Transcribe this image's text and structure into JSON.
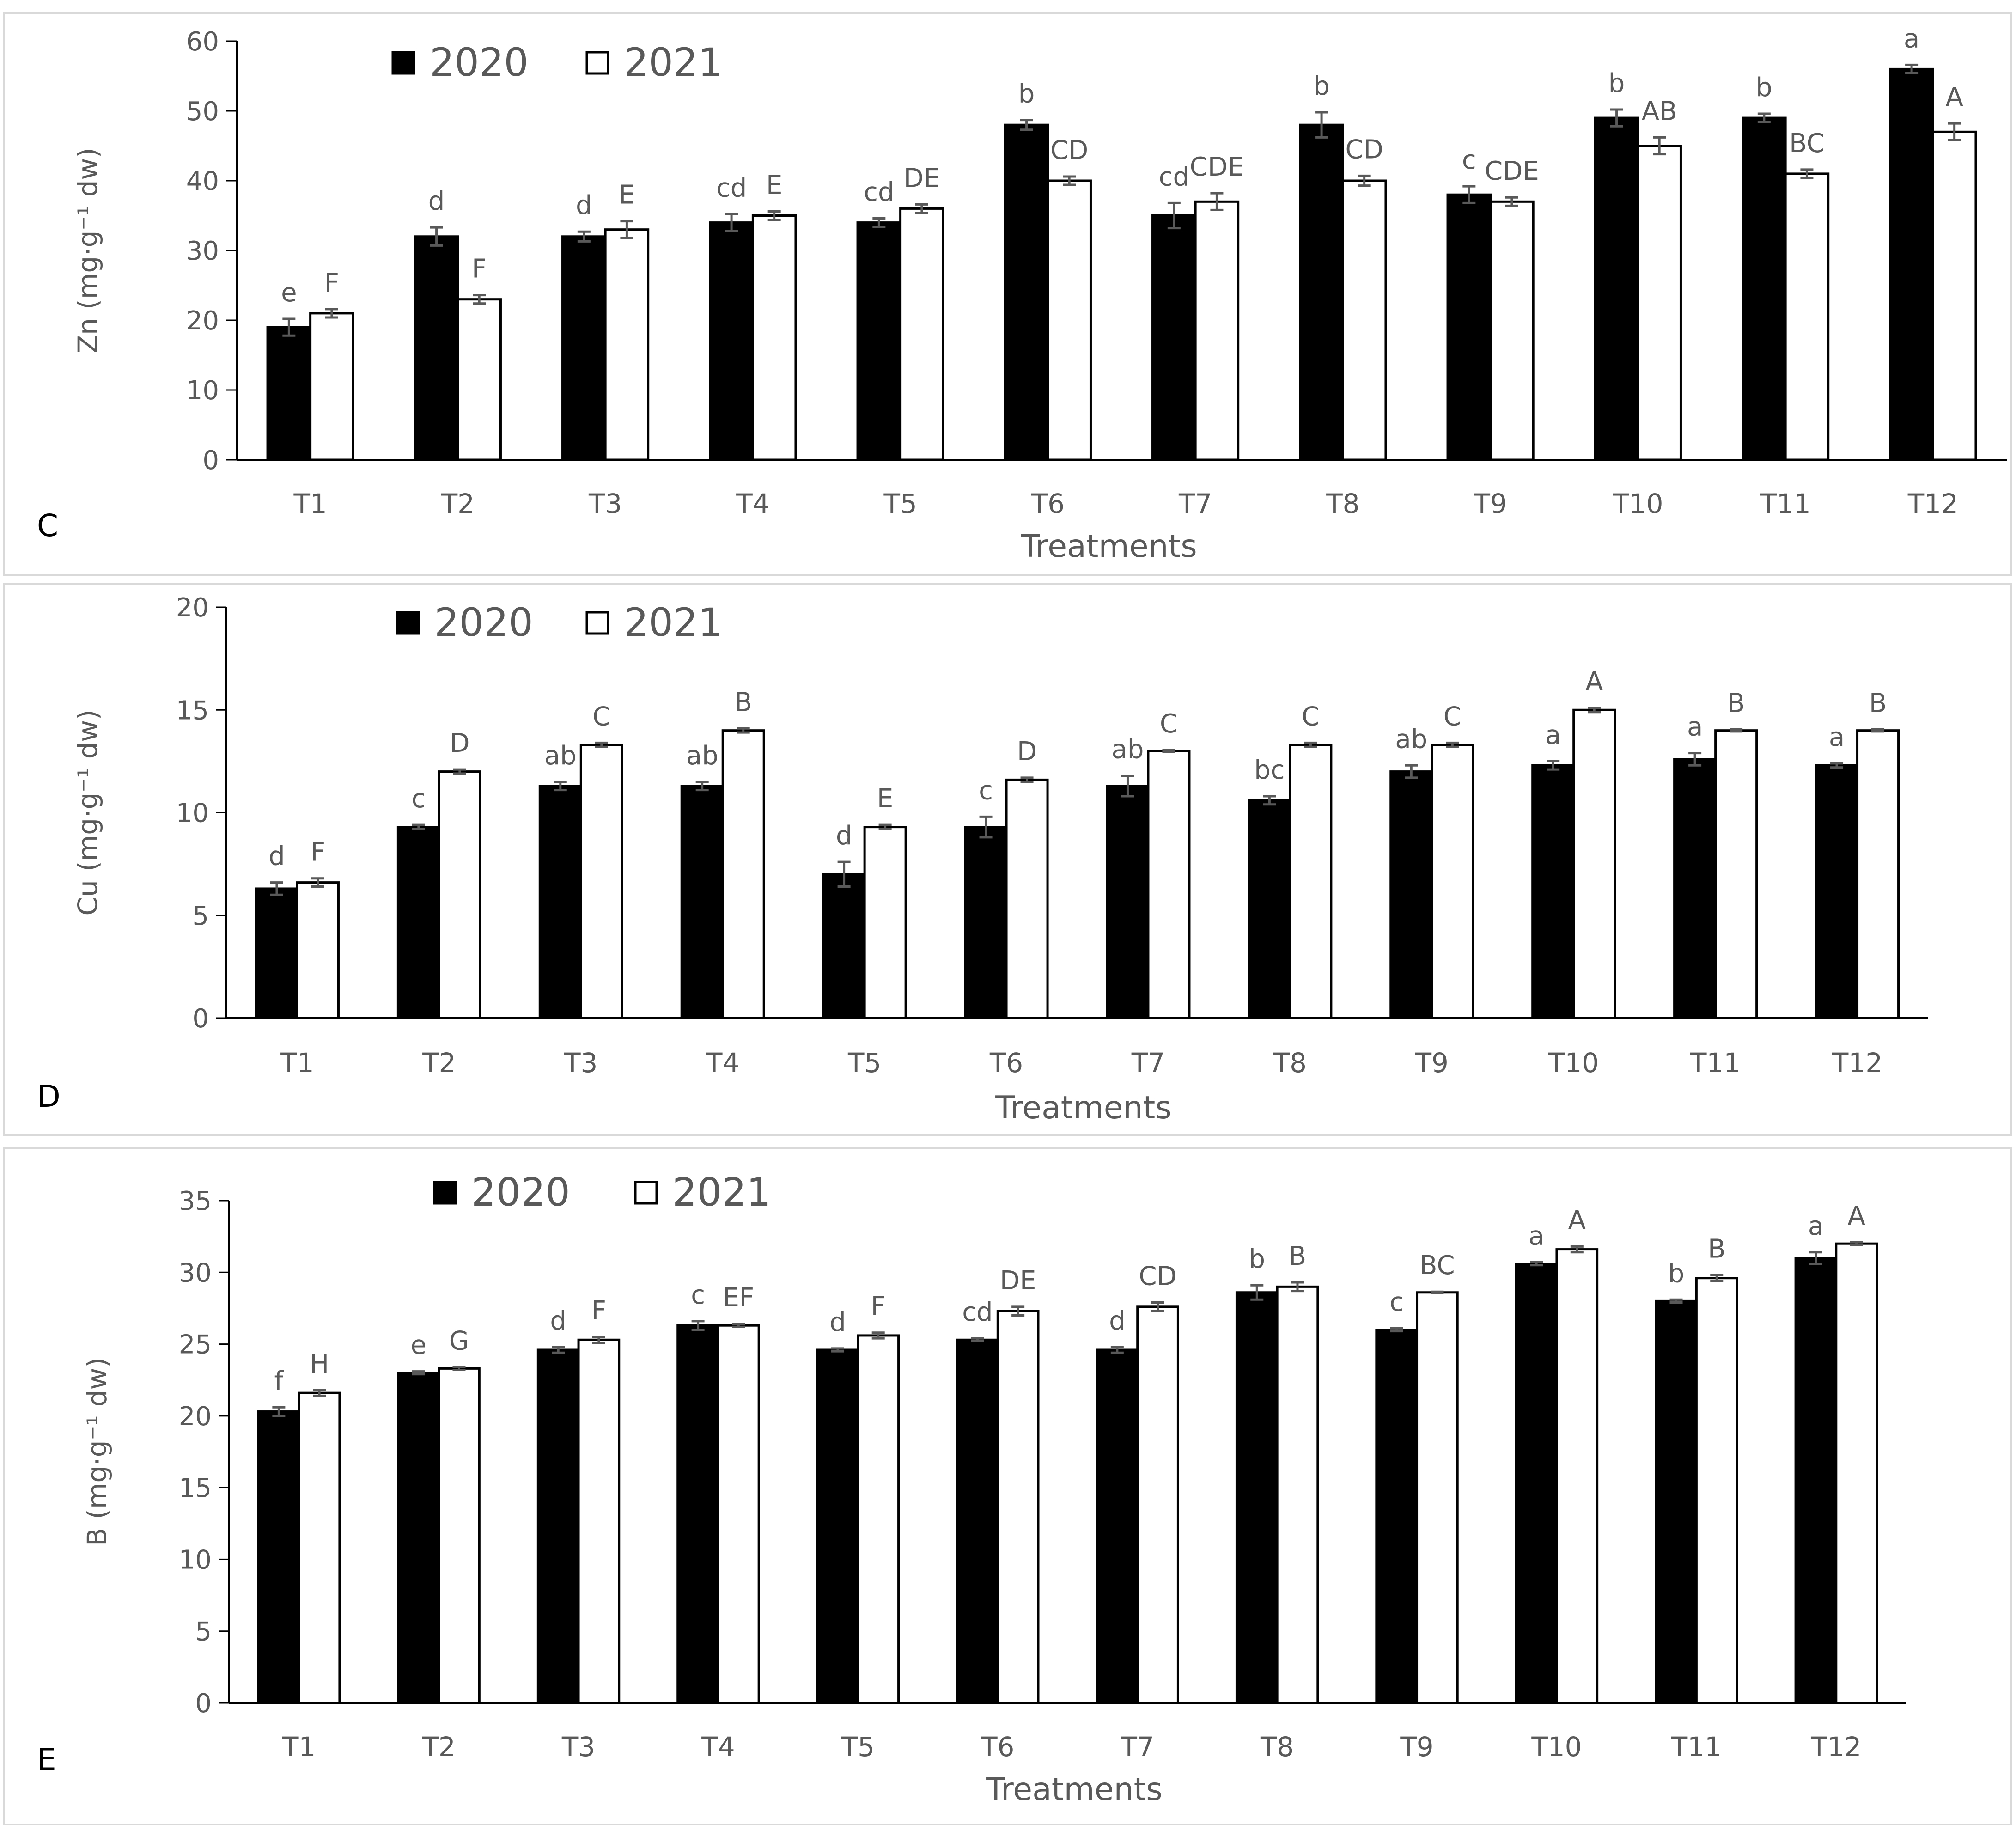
{
  "colors": {
    "s2020": "#000000",
    "s2021": "#ffffff",
    "bar_stroke": "#000000",
    "text": "#595959",
    "axis": "#000000",
    "border": "#d9d9d9",
    "errorbar": "#595959"
  },
  "chart_data": [
    {
      "type": "bar",
      "panel": "C",
      "title": "",
      "xlabel": "Treatments",
      "ylabel": "Zn (mg·g⁻¹ dw)",
      "ylim": [
        0,
        60
      ],
      "yticks": [
        "0",
        "10",
        "20",
        "30",
        "40",
        "50",
        "60"
      ],
      "categories": [
        "T1",
        "T2",
        "T3",
        "T4",
        "T5",
        "T6",
        "T7",
        "T8",
        "T9",
        "T10",
        "T11",
        "T12"
      ],
      "legend": [
        "2020",
        "2021"
      ],
      "series": [
        {
          "name": "2020",
          "values": [
            19,
            32,
            32,
            34,
            34,
            48,
            35,
            48,
            38,
            49,
            49,
            56
          ],
          "errors": [
            1.2,
            1.3,
            0.7,
            1.2,
            0.6,
            0.7,
            1.8,
            1.8,
            1.2,
            1.2,
            0.6,
            0.6
          ],
          "letters": [
            "e",
            "d",
            "d",
            "cd",
            "cd",
            "b",
            "cd",
            "b",
            "c",
            "b",
            "b",
            "a"
          ]
        },
        {
          "name": "2021",
          "values": [
            21,
            23,
            33,
            35,
            36,
            40,
            37,
            40,
            37,
            45,
            41,
            47
          ],
          "errors": [
            0.6,
            0.6,
            1.2,
            0.6,
            0.6,
            0.6,
            1.2,
            0.7,
            0.6,
            1.2,
            0.6,
            1.2
          ],
          "letters": [
            "F",
            "F",
            "E",
            "E",
            "DE",
            "CD",
            "CDE",
            "CD",
            "CDE",
            "AB",
            "BC",
            "A"
          ]
        }
      ]
    },
    {
      "type": "bar",
      "panel": "D",
      "title": "",
      "xlabel": "Treatments",
      "ylabel": "Cu (mg·g⁻¹ dw)",
      "ylim": [
        0,
        20
      ],
      "yticks": [
        "0",
        "5",
        "10",
        "15",
        "20"
      ],
      "categories": [
        "T1",
        "T2",
        "T3",
        "T4",
        "T5",
        "T6",
        "T7",
        "T8",
        "T9",
        "T10",
        "T11",
        "T12"
      ],
      "legend": [
        "2020",
        "2021"
      ],
      "series": [
        {
          "name": "2020",
          "values": [
            6.3,
            9.3,
            11.3,
            11.3,
            7.0,
            9.3,
            11.3,
            10.6,
            12.0,
            12.3,
            12.6,
            12.3
          ],
          "errors": [
            0.3,
            0.1,
            0.2,
            0.2,
            0.6,
            0.5,
            0.5,
            0.2,
            0.3,
            0.2,
            0.3,
            0.1
          ],
          "letters": [
            "d",
            "c",
            "ab",
            "ab",
            "d",
            "c",
            "ab",
            "bc",
            "ab",
            "a",
            "a",
            "a"
          ]
        },
        {
          "name": "2021",
          "values": [
            6.6,
            12.0,
            13.3,
            14.0,
            9.3,
            11.6,
            13.0,
            13.3,
            13.3,
            15.0,
            14.0,
            14.0
          ],
          "errors": [
            0.2,
            0.1,
            0.1,
            0.1,
            0.1,
            0.1,
            0.05,
            0.1,
            0.1,
            0.1,
            0.05,
            0.05
          ],
          "letters": [
            "F",
            "D",
            "C",
            "B",
            "E",
            "D",
            "C",
            "C",
            "C",
            "A",
            "B",
            "B"
          ]
        }
      ]
    },
    {
      "type": "bar",
      "panel": "E",
      "title": "",
      "xlabel": "Treatments",
      "ylabel": "B (mg·g⁻¹ dw)",
      "ylim": [
        0,
        35
      ],
      "yticks": [
        "0",
        "5",
        "10",
        "15",
        "20",
        "25",
        "30",
        "35"
      ],
      "categories": [
        "T1",
        "T2",
        "T3",
        "T4",
        "T5",
        "T6",
        "T7",
        "T8",
        "T9",
        "T10",
        "T11",
        "T12"
      ],
      "legend": [
        "2020",
        "2021"
      ],
      "series": [
        {
          "name": "2020",
          "values": [
            20.3,
            23.0,
            24.6,
            26.3,
            24.6,
            25.3,
            24.6,
            28.6,
            26.0,
            30.6,
            28.0,
            31.0
          ],
          "errors": [
            0.3,
            0.1,
            0.2,
            0.3,
            0.1,
            0.1,
            0.2,
            0.5,
            0.1,
            0.1,
            0.1,
            0.4
          ],
          "letters": [
            "f",
            "e",
            "d",
            "c",
            "d",
            "cd",
            "d",
            "b",
            "c",
            "a",
            "b",
            "a"
          ]
        },
        {
          "name": "2021",
          "values": [
            21.6,
            23.3,
            25.3,
            26.3,
            25.6,
            27.3,
            27.6,
            29.0,
            28.6,
            31.6,
            29.6,
            32.0
          ],
          "errors": [
            0.2,
            0.1,
            0.2,
            0.1,
            0.2,
            0.3,
            0.3,
            0.3,
            0.05,
            0.2,
            0.2,
            0.1
          ],
          "letters": [
            "H",
            "G",
            "F",
            "EF",
            "F",
            "DE",
            "CD",
            "B",
            "BC",
            "A",
            "B",
            "A"
          ]
        }
      ]
    }
  ]
}
